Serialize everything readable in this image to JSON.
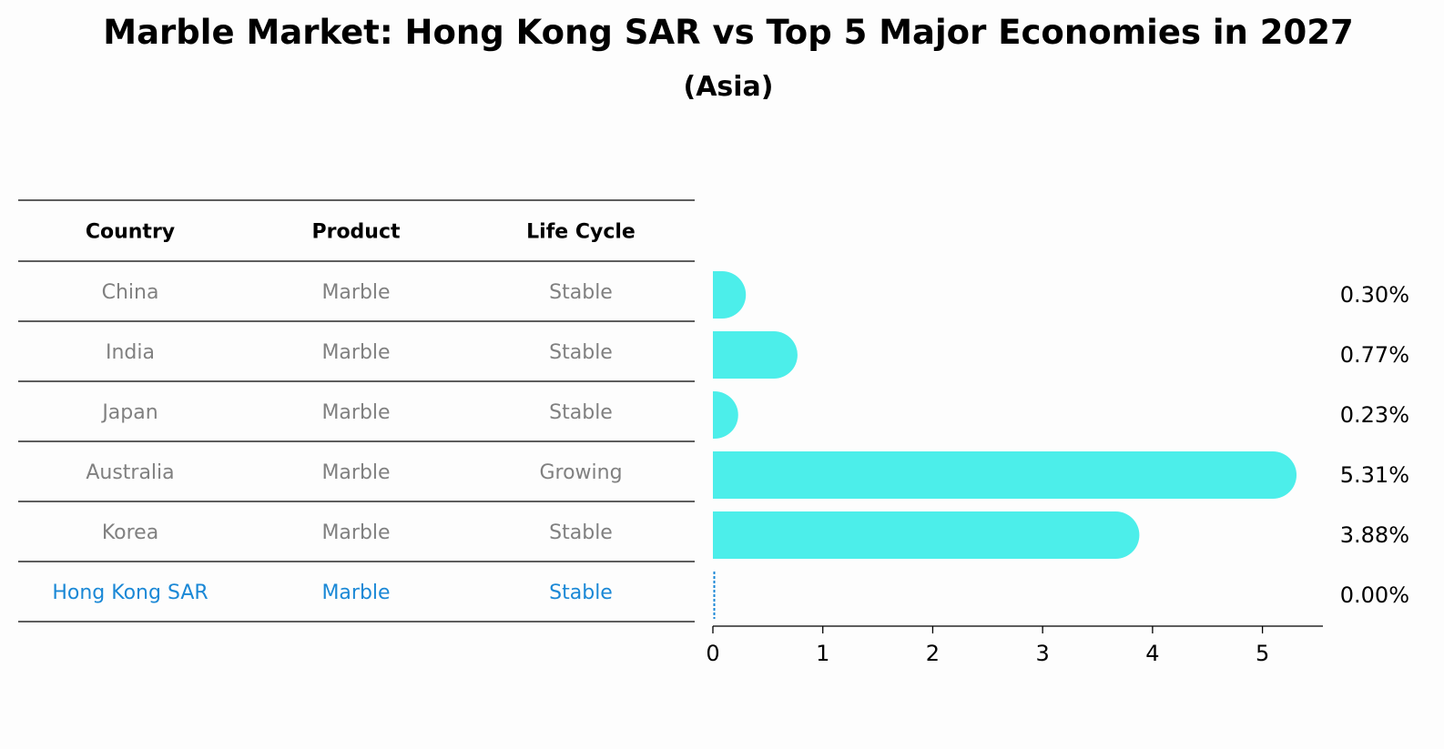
{
  "title": "Marble Market: Hong Kong SAR vs Top 5 Major Economies in 2027",
  "subtitle": "(Asia)",
  "table": {
    "headers": [
      "Country",
      "Product",
      "Life Cycle"
    ],
    "rows": [
      {
        "country": "China",
        "product": "Marble",
        "life_cycle": "Stable",
        "highlight": false
      },
      {
        "country": "India",
        "product": "Marble",
        "life_cycle": "Stable",
        "highlight": false
      },
      {
        "country": "Japan",
        "product": "Marble",
        "life_cycle": "Stable",
        "highlight": false
      },
      {
        "country": "Australia",
        "product": "Marble",
        "life_cycle": "Growing",
        "highlight": false
      },
      {
        "country": "Korea",
        "product": "Marble",
        "life_cycle": "Stable",
        "highlight": false
      },
      {
        "country": "Hong Kong SAR",
        "product": "Marble",
        "life_cycle": "Stable",
        "highlight": true
      }
    ]
  },
  "chart_data": {
    "type": "bar",
    "orientation": "horizontal",
    "categories": [
      "China",
      "India",
      "Japan",
      "Australia",
      "Korea",
      "Hong Kong SAR"
    ],
    "values": [
      0.3,
      0.77,
      0.23,
      5.31,
      3.88,
      0.0
    ],
    "value_labels": [
      "0.30%",
      "0.77%",
      "0.23%",
      "5.31%",
      "3.88%",
      "0.00%"
    ],
    "xlim": [
      0,
      5.55
    ],
    "xticks": [
      0,
      1,
      2,
      3,
      4,
      5
    ],
    "xticklabels": [
      "0",
      "1",
      "2",
      "3",
      "4",
      "5"
    ],
    "grid": false
  },
  "colors": {
    "bar": "#4ceeea",
    "text_muted": "#808080",
    "highlight": "#1a88d6",
    "rule": "#000000"
  }
}
